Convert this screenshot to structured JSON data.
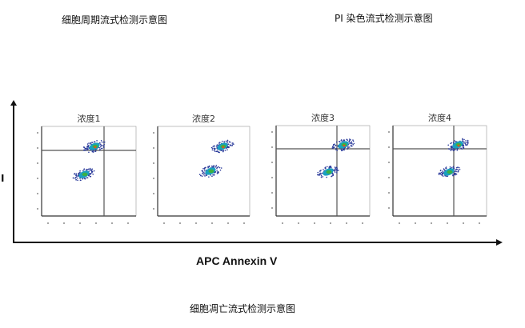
{
  "captions": {
    "cell_cycle": "细胞周期流式检测示意图",
    "pi_staining": "PI 染色流式检测示意图",
    "apoptosis": "细胞凋亡流式检测示意图"
  },
  "figure": {
    "x_axis_label": "APC Annexin V",
    "y_axis_label": "I",
    "panels": [
      {
        "title": "浓度1",
        "quadrant_lines": true
      },
      {
        "title": "浓度2",
        "quadrant_lines": false
      },
      {
        "title": "浓度3",
        "quadrant_lines": true
      },
      {
        "title": "浓度4",
        "quadrant_lines": true
      }
    ]
  },
  "colors": {
    "axis": "#111111",
    "quadrant": "#555555",
    "dots_low": "#2a3a9a",
    "dots_mid": "#1aa0c0",
    "dots_high": "#3cb043",
    "dots_peak": "#e05020"
  }
}
